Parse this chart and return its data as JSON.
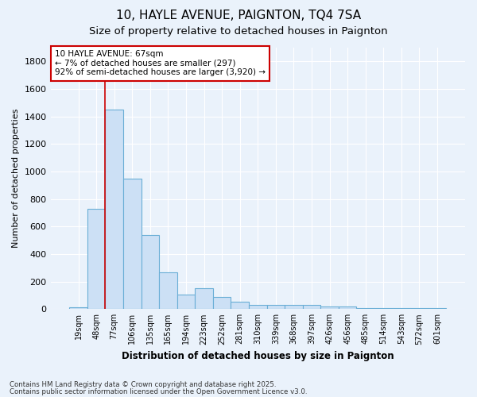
{
  "title1": "10, HAYLE AVENUE, PAIGNTON, TQ4 7SA",
  "title2": "Size of property relative to detached houses in Paignton",
  "xlabel": "Distribution of detached houses by size in Paignton",
  "ylabel": "Number of detached properties",
  "categories": [
    "19sqm",
    "48sqm",
    "77sqm",
    "106sqm",
    "135sqm",
    "165sqm",
    "194sqm",
    "223sqm",
    "252sqm",
    "281sqm",
    "310sqm",
    "339sqm",
    "368sqm",
    "397sqm",
    "426sqm",
    "456sqm",
    "485sqm",
    "514sqm",
    "543sqm",
    "572sqm",
    "601sqm"
  ],
  "values": [
    15,
    730,
    1450,
    950,
    540,
    270,
    105,
    150,
    90,
    55,
    30,
    30,
    30,
    30,
    20,
    20,
    10,
    10,
    5,
    5,
    5
  ],
  "bar_color": "#cce0f5",
  "bar_edge_color": "#6aaed6",
  "red_line_x": 1.5,
  "annotation_line1": "10 HAYLE AVENUE: 67sqm",
  "annotation_line2": "← 7% of detached houses are smaller (297)",
  "annotation_line3": "92% of semi-detached houses are larger (3,920) →",
  "annotation_box_color": "#ffffff",
  "annotation_box_edge": "#cc0000",
  "ylim": [
    0,
    1900
  ],
  "yticks": [
    0,
    200,
    400,
    600,
    800,
    1000,
    1200,
    1400,
    1600,
    1800
  ],
  "footer1": "Contains HM Land Registry data © Crown copyright and database right 2025.",
  "footer2": "Contains public sector information licensed under the Open Government Licence v3.0.",
  "bg_color": "#eaf2fb",
  "plot_bg_color": "#eaf2fb",
  "grid_color": "#ffffff",
  "title_fontsize": 11,
  "subtitle_fontsize": 9.5
}
